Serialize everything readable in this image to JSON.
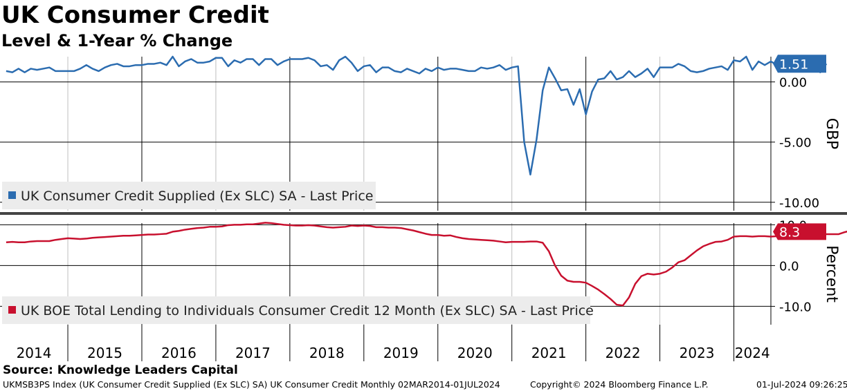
{
  "title": "UK Consumer Credit",
  "subtitle": "Level & 1-Year % Change",
  "source": "Source: Knowledge Leaders Capital",
  "footer": {
    "left": "UKMSB3PS Index (UK Consumer Credit Supplied (Ex SLC) SA) UK Consumer Credit  Monthly 02MAR2014-01JUL2024",
    "center": "Copyright© 2024 Bloomberg Finance L.P.",
    "right": "01-Jul-2024 09:26:25"
  },
  "colors": {
    "series1": "#2b6cb0",
    "series2": "#c8102e"
  },
  "chart_data": [
    {
      "type": "line",
      "y_axis_title": "GBP",
      "ylim": [
        -10.7,
        2.1
      ],
      "yticks": [
        0,
        -5,
        -10
      ],
      "ytick_labels": [
        "0.00",
        "-5.00",
        "-10.00"
      ],
      "last_value_label": "1.51",
      "series": [
        {
          "name": "UK Consumer Credit Supplied (Ex SLC) SA - Last Price",
          "x_start": "2014-03",
          "frequency": "monthly",
          "values": [
            0.9,
            0.8,
            1.1,
            0.8,
            1.1,
            1.0,
            1.1,
            1.2,
            0.9,
            0.9,
            0.9,
            0.9,
            1.1,
            1.4,
            1.1,
            0.9,
            1.2,
            1.4,
            1.5,
            1.3,
            1.3,
            1.4,
            1.4,
            1.5,
            1.5,
            1.6,
            1.4,
            2.1,
            1.3,
            1.7,
            1.9,
            1.6,
            1.6,
            1.7,
            2.0,
            2.0,
            1.3,
            1.8,
            1.6,
            1.9,
            1.9,
            1.4,
            1.9,
            1.9,
            1.4,
            1.7,
            1.9,
            1.9,
            1.9,
            2.0,
            1.8,
            1.3,
            1.4,
            1.0,
            1.8,
            2.1,
            1.6,
            0.9,
            1.3,
            1.4,
            0.8,
            1.2,
            1.2,
            0.9,
            0.8,
            1.1,
            0.9,
            0.7,
            1.1,
            0.9,
            1.2,
            1.0,
            1.1,
            1.1,
            1.0,
            0.9,
            0.9,
            1.2,
            1.1,
            1.2,
            1.4,
            1.0,
            1.2,
            1.3,
            -5.0,
            -7.7,
            -4.8,
            -0.7,
            1.2,
            0.3,
            -0.7,
            -0.6,
            -1.9,
            -0.6,
            -2.7,
            -0.8,
            0.2,
            0.3,
            0.9,
            0.2,
            0.4,
            0.9,
            0.4,
            0.7,
            1.1,
            0.4,
            1.2,
            1.2,
            1.2,
            1.5,
            1.3,
            0.9,
            0.8,
            0.9,
            1.1,
            1.2,
            1.3,
            1.0,
            1.8,
            1.7,
            2.1,
            1.0,
            1.7,
            1.4,
            1.7,
            1.4,
            1.5,
            2.0,
            1.2,
            1.9,
            1.4,
            1.4,
            0.8,
            1.51
          ]
        }
      ]
    },
    {
      "type": "line",
      "y_axis_title": "Percent",
      "ylim": [
        -14.5,
        10.4
      ],
      "yticks": [
        10,
        0,
        -10
      ],
      "ytick_labels": [
        "10.0",
        "0.0",
        "-10.0"
      ],
      "last_value_label": "8.3",
      "series": [
        {
          "name": "UK BOE Total Lending to Individuals Consumer Credit 12 Month (Ex SLC) SA - Last Price",
          "x_start": "2014-03",
          "frequency": "monthly",
          "values": [
            5.7,
            5.8,
            5.7,
            5.7,
            5.9,
            6.0,
            6.0,
            6.0,
            6.3,
            6.5,
            6.7,
            6.6,
            6.5,
            6.6,
            6.8,
            6.9,
            7.0,
            7.1,
            7.2,
            7.3,
            7.3,
            7.4,
            7.5,
            7.6,
            7.6,
            7.7,
            7.8,
            8.3,
            8.5,
            8.8,
            9.0,
            9.2,
            9.3,
            9.5,
            9.5,
            9.6,
            9.9,
            10.0,
            10.0,
            10.1,
            10.1,
            10.3,
            10.5,
            10.4,
            10.2,
            10.0,
            9.9,
            9.8,
            9.8,
            9.9,
            9.8,
            9.6,
            9.4,
            9.3,
            9.4,
            9.5,
            9.8,
            9.7,
            9.8,
            9.7,
            9.4,
            9.4,
            9.3,
            9.3,
            9.2,
            8.9,
            8.6,
            8.2,
            7.8,
            7.5,
            7.5,
            7.3,
            7.4,
            7.0,
            6.7,
            6.5,
            6.4,
            6.3,
            6.2,
            6.1,
            5.9,
            5.7,
            5.8,
            5.8,
            5.8,
            5.9,
            5.9,
            5.6,
            3.5,
            0.0,
            -2.5,
            -3.7,
            -4.0,
            -4.0,
            -4.2,
            -5.0,
            -5.9,
            -7.0,
            -8.2,
            -9.6,
            -9.8,
            -7.8,
            -4.5,
            -2.6,
            -2.0,
            -2.2,
            -2.0,
            -1.5,
            -0.5,
            0.8,
            1.3,
            2.5,
            3.7,
            4.7,
            5.3,
            5.8,
            5.9,
            6.3,
            7.1,
            7.2,
            7.2,
            7.1,
            7.2,
            7.2,
            7.1,
            7.2,
            7.6,
            7.5,
            7.8,
            7.6,
            7.9,
            8.0,
            7.8,
            7.7,
            7.7,
            7.7,
            8.2,
            8.6,
            8.7,
            9.2,
            9.0,
            8.9,
            8.6,
            8.3
          ]
        }
      ]
    }
  ],
  "x_axis": {
    "year_labels": [
      "2014",
      "2015",
      "2016",
      "2017",
      "2018",
      "2019",
      "2020",
      "2021",
      "2022",
      "2023",
      "2024"
    ],
    "grid_dates": [
      "2015-01",
      "2016-01",
      "2017-01",
      "2018-01",
      "2019-01",
      "2020-01",
      "2021-01",
      "2022-01",
      "2023-01",
      "2024-01"
    ],
    "major_grid_dates": [
      "2016-01",
      "2018-01",
      "2020-01",
      "2022-01",
      "2024-01"
    ],
    "x_end": "2024-07"
  }
}
